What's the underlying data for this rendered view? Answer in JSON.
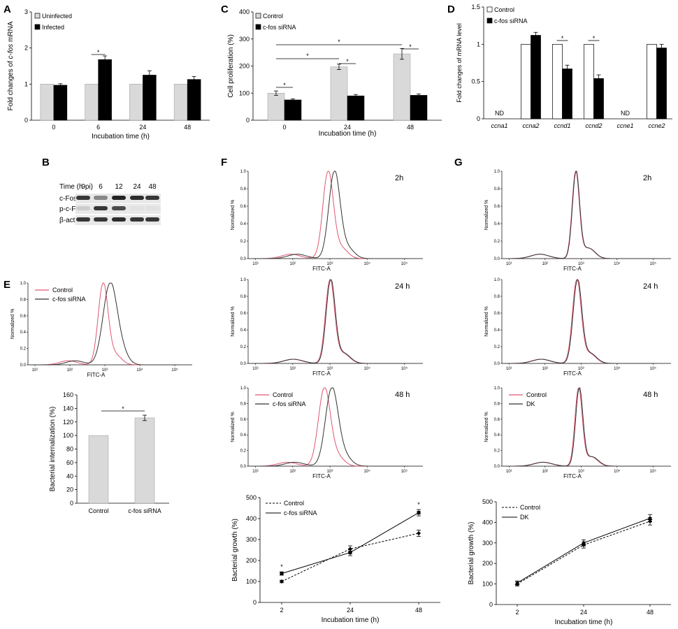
{
  "panel_letters": [
    "A",
    "B",
    "C",
    "D",
    "E",
    "F",
    "G"
  ],
  "blot": {
    "time_header": "Time (h-pi)",
    "times": [
      "0",
      "6",
      "12",
      "24",
      "48"
    ],
    "rows": [
      "c-Fos",
      "p-c-Fos",
      "β-actin"
    ],
    "intensity": [
      [
        0.9,
        0.5,
        1.0,
        0.95,
        0.9
      ],
      [
        0.15,
        0.9,
        0.8,
        0.05,
        0.05
      ],
      [
        0.9,
        0.9,
        0.95,
        0.9,
        0.9
      ]
    ]
  },
  "chart_data": [
    {
      "id": "A",
      "type": "bar",
      "title": "",
      "ylabel_pre": "Fold changes of ",
      "ylabel_ital": "c-fos",
      "ylabel_post": " mRNA",
      "xlabel": "Incubation time (h)",
      "categories": [
        "0",
        "6",
        "24",
        "48"
      ],
      "ylim": [
        0,
        3
      ],
      "yticks": [
        "0",
        "1",
        "2",
        "3"
      ],
      "series": [
        {
          "name": "Uninfected",
          "color": "#d9d9d9",
          "values": [
            1,
            1,
            1,
            1
          ],
          "err": [
            0,
            0,
            0,
            0
          ]
        },
        {
          "name": "Infected",
          "color": "#000000",
          "values": [
            0.97,
            1.68,
            1.25,
            1.13
          ],
          "err": [
            0.04,
            0.1,
            0.12,
            0.08
          ]
        }
      ],
      "annotations": [
        {
          "text": "*",
          "category": 1
        }
      ]
    },
    {
      "id": "C",
      "type": "bar",
      "ylabel": "Cell proliferation (%)",
      "xlabel": "Incubation time (h)",
      "categories": [
        "0",
        "24",
        "48"
      ],
      "ylim": [
        0,
        400
      ],
      "yticks": [
        "0",
        "100",
        "200",
        "300",
        "400"
      ],
      "series": [
        {
          "name": "Control",
          "color": "#d9d9d9",
          "values": [
            100,
            197,
            245
          ],
          "err": [
            8,
            10,
            20
          ]
        },
        {
          "name": "c-fos siRNA",
          "color": "#000000",
          "values": [
            75,
            90,
            92
          ],
          "err": [
            4,
            5,
            5
          ]
        }
      ],
      "annotations": [
        {
          "text": "*",
          "pair": 0
        },
        {
          "text": "*",
          "pair": 1
        },
        {
          "text": "*",
          "pair": 2
        },
        {
          "text": "*",
          "span": [
            0,
            1
          ]
        },
        {
          "text": "*",
          "span": [
            0,
            2
          ]
        }
      ]
    },
    {
      "id": "D",
      "type": "bar",
      "ylabel": "Fold changes of mRNA level",
      "xlabel": "",
      "categories": [
        "ccna1",
        "ccna2",
        "ccnd1",
        "ccnd2",
        "ccne1",
        "ccne2"
      ],
      "ylim": [
        0,
        1.5
      ],
      "yticks": [
        "0",
        "0.5",
        "1",
        "1.5"
      ],
      "series": [
        {
          "name": "Control",
          "color": "#ffffff",
          "values": [
            null,
            1,
            1,
            1,
            null,
            1
          ],
          "err": [
            0,
            0,
            0,
            0,
            0,
            0
          ]
        },
        {
          "name": "c-fos siRNA",
          "color": "#000000",
          "values": [
            null,
            1.12,
            0.67,
            0.54,
            null,
            0.95
          ],
          "err": [
            0,
            0.04,
            0.05,
            0.05,
            0,
            0.05
          ]
        }
      ],
      "nd_label": "ND",
      "annotations": [
        {
          "text": "*",
          "category": 2
        },
        {
          "text": "*",
          "category": 3
        }
      ]
    },
    {
      "id": "E_hist",
      "type": "line",
      "ylabel": "Normalized %",
      "xlabel": "FITC-A",
      "yticks": [
        "0.0",
        "0.2",
        "0.4",
        "0.6",
        "0.8",
        "1.0"
      ],
      "xticks": [
        "10¹",
        "10²",
        "10³",
        "10⁴",
        "10⁵"
      ],
      "series": [
        {
          "name": "Control",
          "color": "#e05670",
          "peak": 2.3,
          "w": 0.14
        },
        {
          "name": "c-fos siRNA",
          "color": "#333333",
          "peak": 2.5,
          "w": 0.2
        }
      ]
    },
    {
      "id": "E_bar",
      "type": "bar",
      "ylabel": "Bacterial internalization (%)",
      "xlabel": "",
      "categories": [
        "Control",
        "c-fos siRNA"
      ],
      "ylim": [
        0,
        160
      ],
      "yticks": [
        "0",
        "20",
        "40",
        "60",
        "80",
        "100",
        "120",
        "140",
        "160"
      ],
      "values": [
        100,
        126
      ],
      "err": [
        0,
        4
      ],
      "annotations": [
        {
          "text": "*"
        }
      ]
    },
    {
      "id": "F_hist",
      "type": "line",
      "ylabel": "Normalized %",
      "xlabel": "FITC-A",
      "xticks": [
        "10¹",
        "10²",
        "10³",
        "10⁴",
        "10⁵"
      ],
      "yticks": [
        "0.0",
        "0.2",
        "0.4",
        "0.6",
        "0.8",
        "1.0"
      ],
      "panels": [
        {
          "label": "2h",
          "ctrl": [
            2.95,
            0.14
          ],
          "trt": [
            3.12,
            0.15
          ]
        },
        {
          "label": "24 h",
          "ctrl": [
            3.0,
            0.12
          ],
          "trt": [
            3.02,
            0.12
          ]
        },
        {
          "label": "48 h",
          "ctrl": [
            2.85,
            0.16
          ],
          "trt": [
            3.05,
            0.17
          ]
        }
      ],
      "legend": [
        "Control",
        "c-fos siRNA"
      ],
      "colors": [
        "#e05670",
        "#333333"
      ]
    },
    {
      "id": "G_hist",
      "type": "line",
      "ylabel": "Normalized %",
      "xlabel": "FITC-A",
      "xticks": [
        "10¹",
        "10²",
        "10³",
        "10⁴",
        "10⁵"
      ],
      "yticks": [
        "0.0",
        "0.2",
        "0.4",
        "0.6",
        "0.8",
        "1.0"
      ],
      "panels": [
        {
          "label": "2h",
          "ctrl": [
            2.85,
            0.1
          ],
          "trt": [
            2.86,
            0.1
          ]
        },
        {
          "label": "24 h",
          "ctrl": [
            2.88,
            0.12
          ],
          "trt": [
            2.9,
            0.12
          ]
        },
        {
          "label": "48 h",
          "ctrl": [
            2.93,
            0.1
          ],
          "trt": [
            2.95,
            0.1
          ]
        }
      ],
      "legend": [
        "Control",
        "DK"
      ],
      "colors": [
        "#e05670",
        "#333333"
      ]
    },
    {
      "id": "F_line",
      "type": "line",
      "ylabel": "Bacterial growth (%)",
      "xlabel": "Incubation time (h)",
      "x": [
        "2",
        "24",
        "48"
      ],
      "ylim": [
        0,
        500
      ],
      "yticks": [
        "0",
        "100",
        "200",
        "300",
        "400",
        "500"
      ],
      "series": [
        {
          "name": "Control",
          "dashed": true,
          "marker": "diamond",
          "values": [
            100,
            255,
            330
          ],
          "err": [
            6,
            15,
            15
          ]
        },
        {
          "name": "c-fos siRNA",
          "dashed": false,
          "marker": "square",
          "values": [
            138,
            238,
            428
          ],
          "err": [
            8,
            15,
            15
          ]
        }
      ],
      "annotations": [
        {
          "text": "*",
          "x": 0
        },
        {
          "text": "*",
          "x": 2
        }
      ]
    },
    {
      "id": "G_line",
      "type": "line",
      "ylabel": "Bacterial growth (%)",
      "xlabel": "Incubation time (h)",
      "x": [
        "2",
        "24",
        "48"
      ],
      "ylim": [
        0,
        500
      ],
      "yticks": [
        "0",
        "100",
        "200",
        "300",
        "400",
        "500"
      ],
      "series": [
        {
          "name": "Control",
          "dashed": true,
          "marker": "diamond",
          "values": [
            100,
            290,
            405
          ],
          "err": [
            10,
            15,
            18
          ]
        },
        {
          "name": "DK",
          "dashed": false,
          "marker": "triangle",
          "values": [
            105,
            300,
            420
          ],
          "err": [
            10,
            15,
            18
          ]
        }
      ]
    }
  ]
}
